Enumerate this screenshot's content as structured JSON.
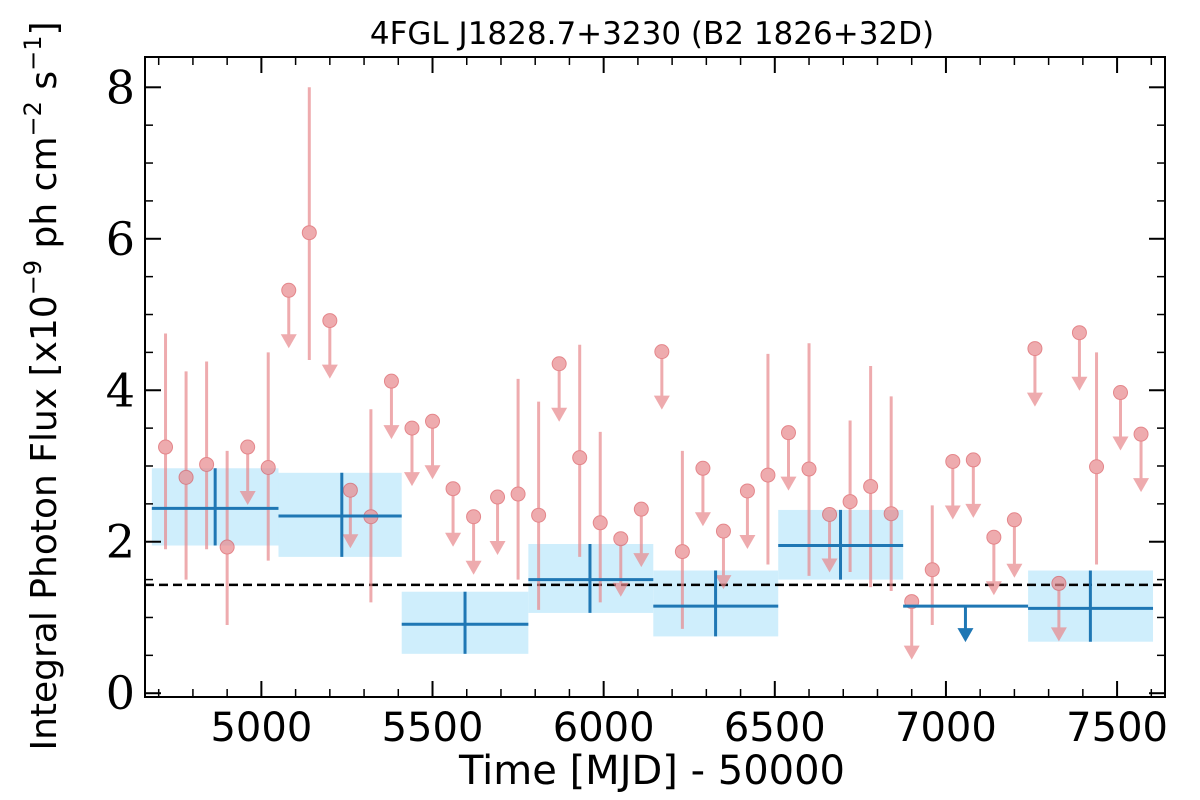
{
  "chart_data": {
    "type": "scatter",
    "title": "4FGL J1828.7+3230 (B2 1826+32D)",
    "xlabel": "Time [MJD] - 50000",
    "ylabel": "Integral Photon Flux [x10$^{-9}$ ph cm$^{-2}$ s$^{-1}$]",
    "ylabel_parts": {
      "prefix": "Integral Photon Flux [x10",
      "exp1": "−9",
      "mid1": " ph cm",
      "exp2": "−2",
      "mid2": " s",
      "exp3": "−1",
      "suffix": "]"
    },
    "xlim": [
      4660,
      7640
    ],
    "ylim": [
      -0.05,
      8.4
    ],
    "xticks": [
      5000,
      5500,
      6000,
      6500,
      7000,
      7500
    ],
    "xtick_labels": [
      "5000",
      "5500",
      "6000",
      "6500",
      "7000",
      "7500"
    ],
    "yticks": [
      0,
      2,
      4,
      6,
      8
    ],
    "ytick_labels": [
      "0",
      "2",
      "4",
      "6",
      "8"
    ],
    "grid": false,
    "reference_line": 1.43,
    "short_bins_measured": [
      {
        "x": 4720,
        "y": 3.25,
        "lo": 1.9,
        "hi": 4.75
      },
      {
        "x": 4780,
        "y": 2.85,
        "lo": 1.5,
        "hi": 4.25
      },
      {
        "x": 4840,
        "y": 3.02,
        "lo": 1.9,
        "hi": 4.38
      },
      {
        "x": 4900,
        "y": 1.93,
        "lo": 0.9,
        "hi": 3.2
      },
      {
        "x": 5020,
        "y": 2.98,
        "lo": 1.75,
        "hi": 4.5
      },
      {
        "x": 5140,
        "y": 6.08,
        "lo": 4.4,
        "hi": 8.0
      },
      {
        "x": 5320,
        "y": 2.33,
        "lo": 1.2,
        "hi": 3.75
      },
      {
        "x": 5750,
        "y": 2.63,
        "lo": 1.5,
        "hi": 4.15
      },
      {
        "x": 5810,
        "y": 2.35,
        "lo": 1.1,
        "hi": 3.85
      },
      {
        "x": 5930,
        "y": 3.11,
        "lo": 1.8,
        "hi": 4.6
      },
      {
        "x": 5990,
        "y": 2.25,
        "lo": 1.2,
        "hi": 3.45
      },
      {
        "x": 6230,
        "y": 1.87,
        "lo": 0.85,
        "hi": 3.2
      },
      {
        "x": 6480,
        "y": 2.88,
        "lo": 1.7,
        "hi": 4.48
      },
      {
        "x": 6600,
        "y": 2.96,
        "lo": 1.55,
        "hi": 4.62
      },
      {
        "x": 6720,
        "y": 2.53,
        "lo": 1.6,
        "hi": 3.6
      },
      {
        "x": 6780,
        "y": 2.73,
        "lo": 1.4,
        "hi": 4.32
      },
      {
        "x": 6840,
        "y": 2.37,
        "lo": 1.35,
        "hi": 3.92
      },
      {
        "x": 6960,
        "y": 1.63,
        "lo": 0.9,
        "hi": 2.48
      },
      {
        "x": 7440,
        "y": 2.99,
        "lo": 1.7,
        "hi": 4.5
      }
    ],
    "short_bins_upper_limits": [
      {
        "x": 4960,
        "y": 3.25
      },
      {
        "x": 5080,
        "y": 5.32
      },
      {
        "x": 5200,
        "y": 4.92
      },
      {
        "x": 5260,
        "y": 2.68
      },
      {
        "x": 5380,
        "y": 4.12
      },
      {
        "x": 5440,
        "y": 3.5
      },
      {
        "x": 5500,
        "y": 3.59
      },
      {
        "x": 5560,
        "y": 2.7
      },
      {
        "x": 5620,
        "y": 2.33
      },
      {
        "x": 5690,
        "y": 2.59
      },
      {
        "x": 5870,
        "y": 4.35
      },
      {
        "x": 6050,
        "y": 2.04
      },
      {
        "x": 6110,
        "y": 2.43
      },
      {
        "x": 6170,
        "y": 4.51
      },
      {
        "x": 6290,
        "y": 2.97
      },
      {
        "x": 6350,
        "y": 2.14
      },
      {
        "x": 6420,
        "y": 2.67
      },
      {
        "x": 6540,
        "y": 3.44
      },
      {
        "x": 6660,
        "y": 2.36
      },
      {
        "x": 6900,
        "y": 1.21
      },
      {
        "x": 7020,
        "y": 3.06
      },
      {
        "x": 7080,
        "y": 3.08
      },
      {
        "x": 7140,
        "y": 2.06
      },
      {
        "x": 7200,
        "y": 2.29
      },
      {
        "x": 7260,
        "y": 4.55
      },
      {
        "x": 7330,
        "y": 1.45
      },
      {
        "x": 7390,
        "y": 4.76
      },
      {
        "x": 7510,
        "y": 3.97
      },
      {
        "x": 7570,
        "y": 3.42
      }
    ],
    "long_bins_measured": [
      {
        "x0": 4680,
        "x1": 5050,
        "xc": 4865,
        "y": 2.44,
        "lo": 1.95,
        "hi": 2.97
      },
      {
        "x0": 5050,
        "x1": 5410,
        "xc": 5235,
        "y": 2.34,
        "lo": 1.8,
        "hi": 2.91
      },
      {
        "x0": 5410,
        "x1": 5780,
        "xc": 5595,
        "y": 0.91,
        "lo": 0.52,
        "hi": 1.34
      },
      {
        "x0": 5780,
        "x1": 6145,
        "xc": 5960,
        "y": 1.5,
        "lo": 1.06,
        "hi": 1.97
      },
      {
        "x0": 6145,
        "x1": 6510,
        "xc": 6327,
        "y": 1.15,
        "lo": 0.75,
        "hi": 1.62
      },
      {
        "x0": 6510,
        "x1": 6875,
        "xc": 6692,
        "y": 1.95,
        "lo": 1.5,
        "hi": 2.42
      },
      {
        "x0": 7240,
        "x1": 7605,
        "xc": 7422,
        "y": 1.12,
        "lo": 0.68,
        "hi": 1.62
      }
    ],
    "long_bins_upper_limits": [
      {
        "x0": 6875,
        "x1": 7240,
        "xc": 7057,
        "y": 1.15
      }
    ],
    "colors": {
      "short_bins": "#e8888c",
      "long_bins": "#1f77b4",
      "long_band": "#cfeefc",
      "reference_line": "#000000"
    }
  }
}
